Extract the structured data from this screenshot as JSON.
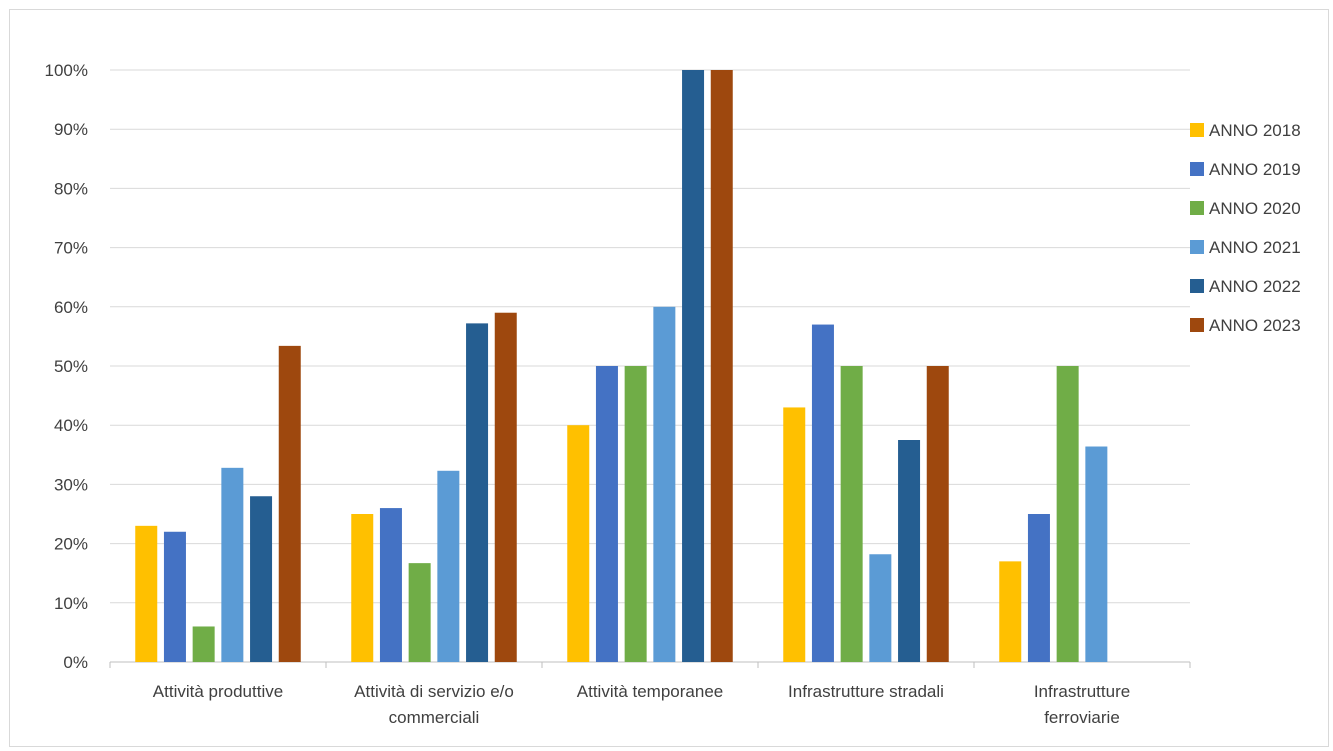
{
  "chart_data": {
    "type": "bar",
    "categories": [
      [
        "Attività produttive"
      ],
      [
        "Attività di servizio e/o",
        "commerciali"
      ],
      [
        "Attività temporanee"
      ],
      [
        "Infrastrutture stradali"
      ],
      [
        "Infrastrutture",
        "ferroviarie"
      ]
    ],
    "series": [
      {
        "name": "ANNO 2018",
        "color": "#FFC000",
        "values": [
          23,
          25,
          40,
          43,
          17
        ]
      },
      {
        "name": "ANNO 2019",
        "color": "#4472C4",
        "values": [
          22,
          26,
          50,
          57,
          25
        ]
      },
      {
        "name": "ANNO 2020",
        "color": "#70AD47",
        "values": [
          6,
          16.7,
          50,
          50,
          50
        ]
      },
      {
        "name": "ANNO 2021",
        "color": "#5B9BD5",
        "values": [
          32.8,
          32.3,
          60,
          18.2,
          36.4
        ]
      },
      {
        "name": "ANNO 2022",
        "color": "#255E91",
        "values": [
          28,
          57.2,
          100,
          37.5,
          null
        ]
      },
      {
        "name": "ANNO 2023",
        "color": "#9E480E",
        "values": [
          53.4,
          59,
          100,
          50,
          null
        ]
      }
    ],
    "yticks": [
      "0%",
      "10%",
      "20%",
      "30%",
      "40%",
      "50%",
      "60%",
      "70%",
      "80%",
      "90%",
      "100%"
    ],
    "ylim": [
      0,
      100
    ],
    "title": "",
    "xlabel": "",
    "ylabel": "",
    "grid": true,
    "legend_position": "right"
  }
}
